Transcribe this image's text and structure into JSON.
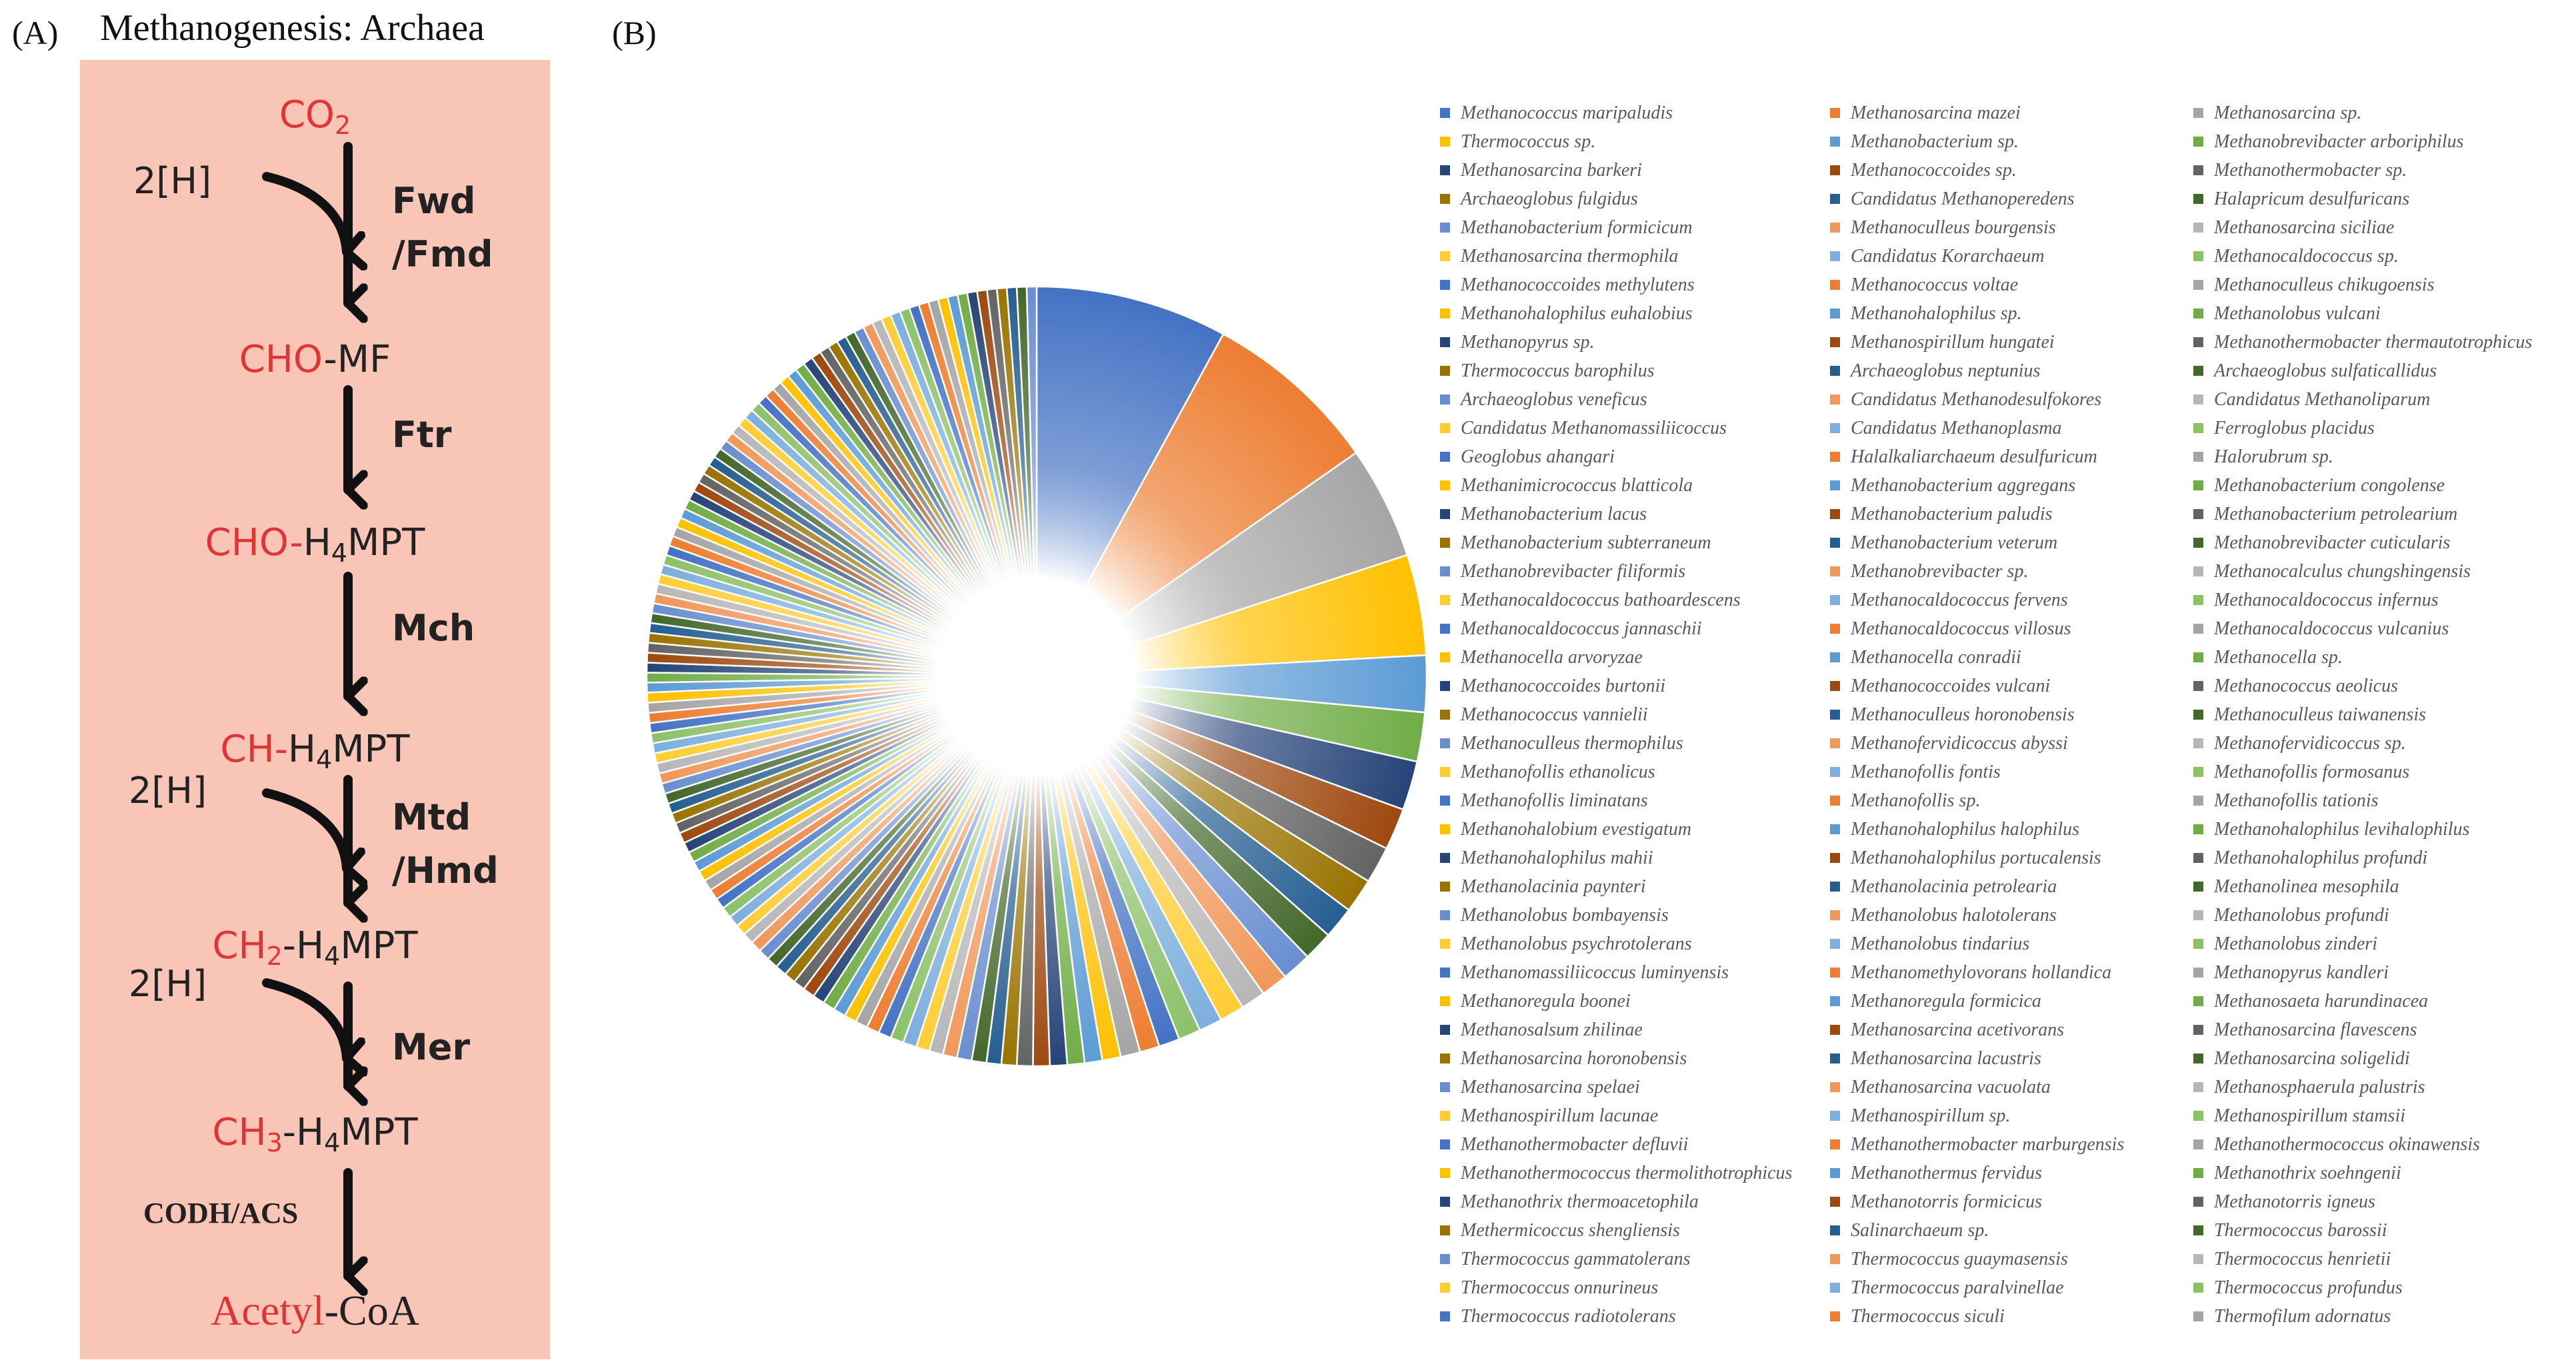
{
  "panel_a": {
    "label": "(A)",
    "title": "Methanogenesis: Archaea",
    "steps": [
      {
        "red": "CO",
        "red_sub": "2",
        "black": "",
        "black_sub": "",
        "black_tail": ""
      },
      {
        "red": "CHO",
        "red_sub": "",
        "black": "-MF",
        "black_sub": "",
        "black_tail": ""
      },
      {
        "red": "CHO-",
        "red_sub": "",
        "black": "H",
        "black_sub": "4",
        "black_tail": "MPT"
      },
      {
        "red": "CH-",
        "red_sub": "",
        "black": "H",
        "black_sub": "4",
        "black_tail": "MPT"
      },
      {
        "red": "CH",
        "red_sub": "2",
        "black": "-H",
        "black_sub": "4",
        "black_tail": "MPT"
      },
      {
        "red": "CH",
        "red_sub": "3",
        "black": "-H",
        "black_sub": "4",
        "black_tail": "MPT"
      },
      {
        "red": "Acetyl",
        "red_sub": "",
        "black": "-CoA",
        "black_sub": "",
        "black_tail": ""
      }
    ],
    "enzymes": {
      "fwd": "Fwd",
      "fmd": "/Fmd",
      "ftr": "Ftr",
      "mch": "Mch",
      "mtd": "Mtd",
      "hmd": "/Hmd",
      "mer": "Mer",
      "codh": "CODH/ACS"
    },
    "hydrogen": "2[H]"
  },
  "panel_b": {
    "label": "(B)",
    "legend": [
      "Methanococcus maripaludis",
      "Methanosarcina mazei",
      "Methanosarcina sp.",
      "Thermococcus sp.",
      "Methanobacterium sp.",
      "Methanobrevibacter arboriphilus",
      "Methanosarcina barkeri",
      "Methanococcoides sp.",
      "Methanothermobacter sp.",
      "Archaeoglobus fulgidus",
      "Candidatus Methanoperedens",
      "Halapricum desulfuricans",
      "Methanobacterium formicicum",
      "Methanoculleus bourgensis",
      "Methanosarcina siciliae",
      "Methanosarcina thermophila",
      "Candidatus Korarchaeum",
      "Methanocaldococcus sp.",
      "Methanococcoides methylutens",
      "Methanococcus voltae",
      "Methanoculleus chikugoensis",
      "Methanohalophilus euhalobius",
      "Methanohalophilus sp.",
      "Methanolobus vulcani",
      "Methanopyrus sp.",
      "Methanospirillum hungatei",
      "Methanothermobacter thermautotrophicus",
      "Thermococcus barophilus",
      "Archaeoglobus neptunius",
      "Archaeoglobus sulfaticallidus",
      "Archaeoglobus veneficus",
      "Candidatus Methanodesulfokores",
      "Candidatus Methanoliparum",
      "Candidatus Methanomassiliicoccus",
      "Candidatus Methanoplasma",
      "Ferroglobus placidus",
      "Geoglobus ahangari",
      "Halalkaliarchaeum desulfuricum",
      "Halorubrum sp.",
      "Methanimicrococcus blatticola",
      "Methanobacterium aggregans",
      "Methanobacterium congolense",
      "Methanobacterium lacus",
      "Methanobacterium paludis",
      "Methanobacterium petrolearium",
      "Methanobacterium subterraneum",
      "Methanobacterium veterum",
      "Methanobrevibacter cuticularis",
      "Methanobrevibacter filiformis",
      "Methanobrevibacter sp.",
      "Methanocalculus chungshingensis",
      "Methanocaldococcus bathoardescens",
      "Methanocaldococcus fervens",
      "Methanocaldococcus infernus",
      "Methanocaldococcus jannaschii",
      "Methanocaldococcus villosus",
      "Methanocaldococcus vulcanius",
      "Methanocella arvoryzae",
      "Methanocella conradii",
      "Methanocella sp.",
      "Methanococcoides burtonii",
      "Methanococcoides vulcani",
      "Methanococcus aeolicus",
      "Methanococcus vannielii",
      "Methanoculleus horonobensis",
      "Methanoculleus taiwanensis",
      "Methanoculleus thermophilus",
      "Methanofervidicoccus abyssi",
      "Methanofervidicoccus sp.",
      "Methanofollis ethanolicus",
      "Methanofollis fontis",
      "Methanofollis formosanus",
      "Methanofollis liminatans",
      "Methanofollis sp.",
      "Methanofollis tationis",
      "Methanohalobium evestigatum",
      "Methanohalophilus halophilus",
      "Methanohalophilus levihalophilus",
      "Methanohalophilus mahii",
      "Methanohalophilus portucalensis",
      "Methanohalophilus profundi",
      "Methanolacinia paynteri",
      "Methanolacinia petrolearia",
      "Methanolinea mesophila",
      "Methanolobus bombayensis",
      "Methanolobus halotolerans",
      "Methanolobus profundi",
      "Methanolobus psychrotolerans",
      "Methanolobus tindarius",
      "Methanolobus zinderi",
      "Methanomassiliicoccus luminyensis",
      "Methanomethylovorans hollandica",
      "Methanopyrus kandleri",
      "Methanoregula boonei",
      "Methanoregula formicica",
      "Methanosaeta harundinacea",
      "Methanosalsum zhilinae",
      "Methanosarcina acetivorans",
      "Methanosarcina flavescens",
      "Methanosarcina horonobensis",
      "Methanosarcina lacustris",
      "Methanosarcina soligelidi",
      "Methanosarcina spelaei",
      "Methanosarcina vacuolata",
      "Methanosphaerula palustris",
      "Methanospirillum lacunae",
      "Methanospirillum sp.",
      "Methanospirillum stamsii",
      "Methanothermobacter defluvii",
      "Methanothermobacter marburgensis",
      "Methanothermococcus okinawensis",
      "Methanothermococcus thermolithotrophicus",
      "Methanothermus fervidus",
      "Methanothrix soehngenii",
      "Methanothrix thermoacetophila",
      "Methanotorris formicicus",
      "Methanotorris igneus",
      "Methermicoccus shengliensis",
      "Salinarchaeum sp.",
      "Thermococcus barossii",
      "Thermococcus gammatolerans",
      "Thermococcus guaymasensis",
      "Thermococcus henrietii",
      "Thermococcus onnurineus",
      "Thermococcus paralvinellae",
      "Thermococcus profundus",
      "Thermococcus radiotolerans",
      "Thermococcus siculi",
      "Thermofilum adornatus"
    ],
    "palette": [
      "#4472c4",
      "#ed7d31",
      "#a5a5a5",
      "#ffc000",
      "#5b9bd5",
      "#70ad47",
      "#264478",
      "#9e480e",
      "#636363",
      "#997300",
      "#255e91",
      "#43682b",
      "#698ed0",
      "#f1975a",
      "#b7b7b7",
      "#ffcd33",
      "#7cafdd",
      "#8cc168"
    ],
    "pie_values": [
      7.8,
      7.2,
      4.6,
      4.1,
      2.3,
      2.0,
      2.0,
      1.7,
      1.5,
      1.4,
      1.3,
      1.2,
      1.2,
      1.1,
      1.0,
      1.0,
      0.95,
      0.9,
      0.85,
      0.8,
      0.8,
      0.75,
      0.72,
      0.7,
      0.7,
      0.68,
      0.65,
      0.62,
      0.6,
      0.6,
      0.6,
      0.58,
      0.56,
      0.55,
      0.55,
      0.54,
      0.52,
      0.52,
      0.5,
      0.5,
      0.5,
      0.5,
      0.48,
      0.48,
      0.48,
      0.47,
      0.47,
      0.46,
      0.46,
      0.46,
      0.45,
      0.45,
      0.45,
      0.45,
      0.44,
      0.44,
      0.44,
      0.44,
      0.43,
      0.43,
      0.43,
      0.43,
      0.43,
      0.42,
      0.42,
      0.42,
      0.42,
      0.42,
      0.42,
      0.41,
      0.41,
      0.41,
      0.41,
      0.41,
      0.41,
      0.41,
      0.4,
      0.4,
      0.4,
      0.4,
      0.4,
      0.4,
      0.4,
      0.4,
      0.4,
      0.4,
      0.4,
      0.4,
      0.4,
      0.4,
      0.4,
      0.4,
      0.4,
      0.4,
      0.4,
      0.4,
      0.4,
      0.4,
      0.4,
      0.4,
      0.4,
      0.4,
      0.4,
      0.4,
      0.4,
      0.4,
      0.4,
      0.4,
      0.4,
      0.4,
      0.4,
      0.4,
      0.4,
      0.4,
      0.4,
      0.4,
      0.4,
      0.4,
      0.4,
      0.4,
      0.4,
      0.4,
      0.4,
      0.4,
      0.4,
      0.4,
      0.4,
      0.4,
      0.4,
      0.4,
      0.4,
      0.4,
      0.4,
      0.4,
      0.4,
      0.4,
      0.4,
      0.4,
      0.4
    ]
  }
}
